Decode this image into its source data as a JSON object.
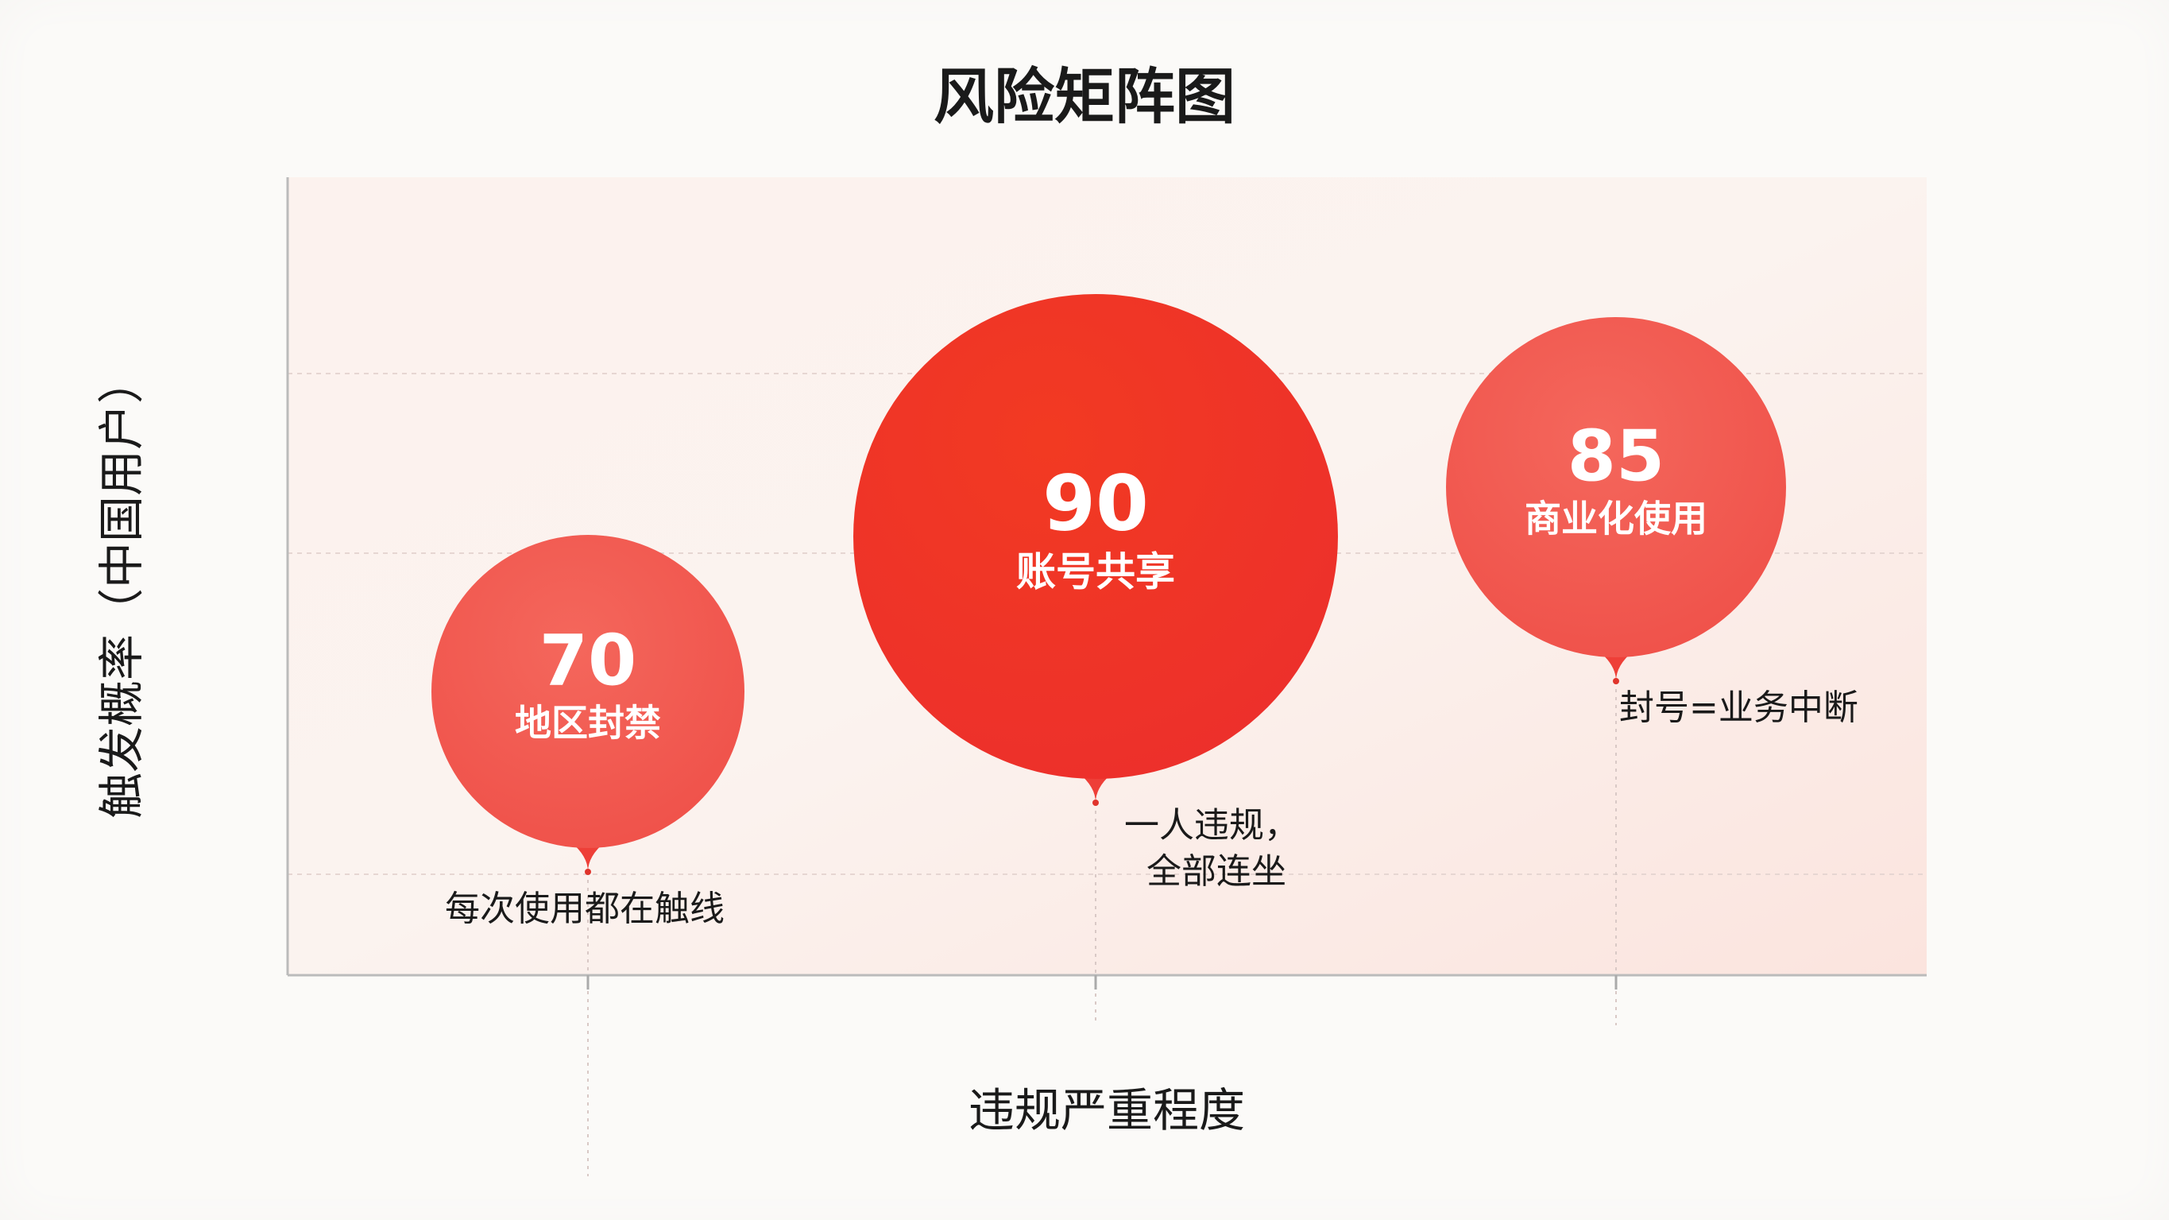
{
  "chart_data": {
    "type": "scatter",
    "title": "风险矩阵图",
    "xlabel": "违规严重程度",
    "ylabel": "触发概率（中国用户）",
    "grid": true,
    "colors": {
      "bubble_light": "#f0564d",
      "bubble_dark": "#ee2f28",
      "background": "#fbe9e4"
    },
    "points": [
      {
        "name": "地区封禁",
        "value": 70,
        "note": "每次使用都在触线"
      },
      {
        "name": "账号共享",
        "value": 90,
        "note": "一人违规，\n  全部连坐"
      },
      {
        "name": "商业化使用",
        "value": 85,
        "note": "封号=业务中断"
      }
    ]
  }
}
